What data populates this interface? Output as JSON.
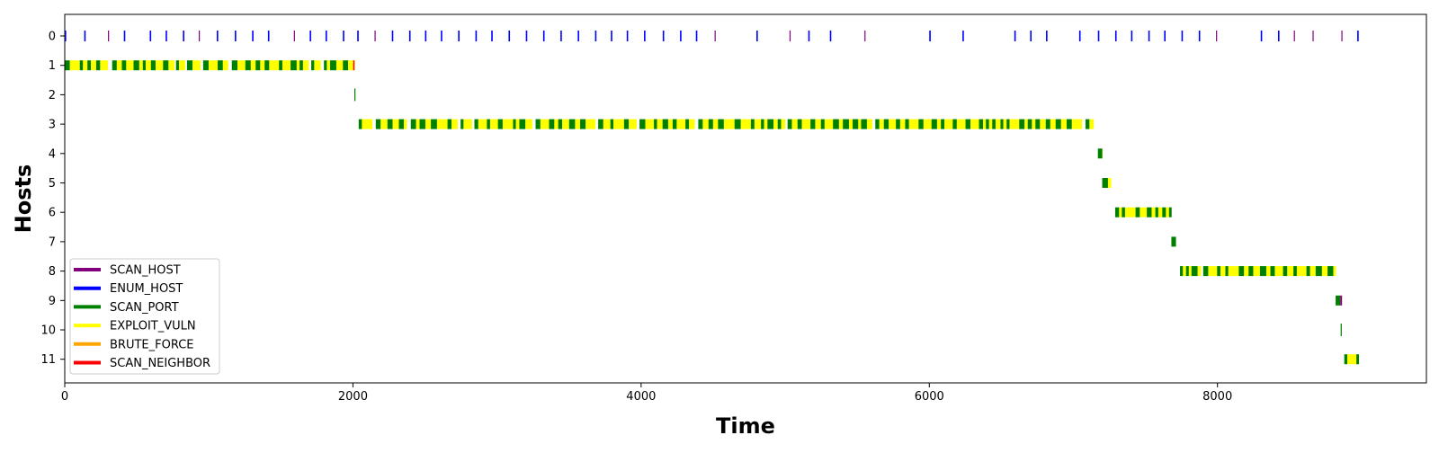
{
  "chart_data": {
    "type": "event-timeline",
    "xlabel": "Time",
    "ylabel": "Hosts",
    "xlim": [
      0,
      9450
    ],
    "xticks": [
      0,
      2000,
      4000,
      6000,
      8000
    ],
    "y_categories": [
      "0",
      "1",
      "2",
      "3",
      "4",
      "5",
      "6",
      "7",
      "8",
      "9",
      "10",
      "11"
    ],
    "y_order": "top-to-bottom",
    "grid": false,
    "legend_position": "lower-left",
    "action_types": [
      {
        "name": "SCAN_HOST",
        "color": "#800080"
      },
      {
        "name": "ENUM_HOST",
        "color": "#0000ff"
      },
      {
        "name": "SCAN_PORT",
        "color": "#008000"
      },
      {
        "name": "EXPLOIT_VULN",
        "color": "#ffff00"
      },
      {
        "name": "BRUTE_FORCE",
        "color": "#ffa500"
      },
      {
        "name": "SCAN_NEIGHBOR",
        "color": "#ff0000"
      }
    ],
    "host_0_events": {
      "SCAN_HOST": [
        300,
        930,
        1590,
        2150,
        4510,
        5030,
        5550,
        7990,
        8530,
        8660,
        8860
      ],
      "ENUM_HOST": [
        0,
        135,
        410,
        590,
        700,
        820,
        1055,
        1180,
        1300,
        1410,
        1700,
        1810,
        1930,
        2030,
        2270,
        2390,
        2500,
        2610,
        2730,
        2850,
        2960,
        3080,
        3200,
        3320,
        3440,
        3560,
        3680,
        3790,
        3900,
        4020,
        4150,
        4270,
        4380,
        4800,
        5160,
        5310,
        6000,
        6230,
        6590,
        6700,
        6810,
        7040,
        7170,
        7290,
        7400,
        7520,
        7630,
        7750,
        7870,
        8300,
        8420,
        8970
      ]
    },
    "host_1_range": [
      0,
      2010
    ],
    "host_2_events": {
      "SCAN_PORT": [
        2010
      ]
    },
    "host_3_range": [
      2040,
      7140
    ],
    "host_4_range": [
      7170,
      7200
    ],
    "host_5_range": [
      7200,
      7260
    ],
    "host_6_range": [
      7290,
      7680
    ],
    "host_7_range": [
      7680,
      7710
    ],
    "host_8_range": [
      7740,
      8820
    ],
    "host_9_range": [
      8820,
      8860
    ],
    "host_10_events": {
      "SCAN_PORT": [
        8855
      ]
    },
    "host_11_range": [
      8880,
      8980
    ]
  }
}
